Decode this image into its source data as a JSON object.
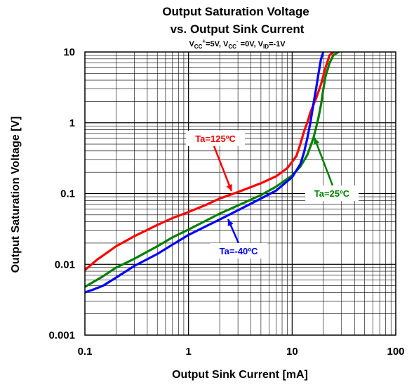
{
  "chart_data": {
    "type": "line",
    "title": "Output Saturation Voltage",
    "subtitle": "vs. Output Sink Current",
    "conditions": {
      "vcc_plus": {
        "sym": "V",
        "sub": "CC",
        "sup": "+",
        "rest": "=5V, "
      },
      "vcc_minus": {
        "sym": "V",
        "sub": "CC",
        "sup": "-",
        "rest": " =0V, "
      },
      "vid": {
        "sym": "V",
        "sub": "ID",
        "rest": "=-1V"
      }
    },
    "xlabel": "Output Sink Current [mA]",
    "ylabel": "Output Saturation Voltage [V]",
    "xscale": "log",
    "yscale": "log",
    "xlim": [
      0.1,
      100
    ],
    "ylim": [
      0.001,
      10
    ],
    "grid": true,
    "x_ticks": [
      "0.1",
      "1",
      "10",
      "100"
    ],
    "y_ticks": [
      "0.001",
      "0.01",
      "0.1",
      "1",
      "10"
    ],
    "series": [
      {
        "name": "Ta=125ºC",
        "color": "#ff0000",
        "points": [
          [
            0.1,
            0.0083
          ],
          [
            0.13,
            0.0115
          ],
          [
            0.2,
            0.018
          ],
          [
            0.3,
            0.025
          ],
          [
            0.5,
            0.036
          ],
          [
            0.7,
            0.045
          ],
          [
            1,
            0.055
          ],
          [
            1.5,
            0.07
          ],
          [
            2,
            0.085
          ],
          [
            3,
            0.105
          ],
          [
            5,
            0.14
          ],
          [
            7,
            0.175
          ],
          [
            9,
            0.23
          ],
          [
            10,
            0.28
          ],
          [
            11,
            0.34
          ],
          [
            12,
            0.5
          ],
          [
            13,
            0.75
          ],
          [
            14,
            1.0
          ],
          [
            15,
            1.4
          ],
          [
            17,
            2.2
          ],
          [
            19,
            3.5
          ],
          [
            21,
            6
          ],
          [
            23,
            9
          ],
          [
            25,
            10
          ]
        ]
      },
      {
        "name": "Ta=25ºC",
        "color": "#008000",
        "points": [
          [
            0.1,
            0.0048
          ],
          [
            0.15,
            0.0068
          ],
          [
            0.2,
            0.009
          ],
          [
            0.3,
            0.012
          ],
          [
            0.5,
            0.018
          ],
          [
            0.7,
            0.024
          ],
          [
            1,
            0.031
          ],
          [
            1.5,
            0.042
          ],
          [
            2,
            0.052
          ],
          [
            3,
            0.068
          ],
          [
            5,
            0.095
          ],
          [
            7,
            0.125
          ],
          [
            10,
            0.18
          ],
          [
            12,
            0.24
          ],
          [
            14,
            0.35
          ],
          [
            16,
            0.6
          ],
          [
            17,
            0.85
          ],
          [
            18,
            1.2
          ],
          [
            19,
            1.8
          ],
          [
            20,
            3.0
          ],
          [
            21,
            4.5
          ],
          [
            23,
            7
          ],
          [
            25,
            9
          ],
          [
            28,
            10
          ]
        ]
      },
      {
        "name": "Ta=-40ºC",
        "color": "#0000ff",
        "points": [
          [
            0.1,
            0.004
          ],
          [
            0.12,
            0.0044
          ],
          [
            0.15,
            0.005
          ],
          [
            0.2,
            0.0065
          ],
          [
            0.3,
            0.0095
          ],
          [
            0.5,
            0.014
          ],
          [
            0.7,
            0.019
          ],
          [
            1,
            0.026
          ],
          [
            1.5,
            0.035
          ],
          [
            2,
            0.043
          ],
          [
            3,
            0.058
          ],
          [
            5,
            0.085
          ],
          [
            7,
            0.11
          ],
          [
            10,
            0.17
          ],
          [
            12,
            0.26
          ],
          [
            13,
            0.38
          ],
          [
            14,
            0.6
          ],
          [
            15,
            1.0
          ],
          [
            16,
            1.8
          ],
          [
            17,
            3.0
          ],
          [
            18,
            5
          ],
          [
            19,
            8
          ],
          [
            20,
            10
          ]
        ]
      }
    ],
    "annotations": [
      {
        "series": "Ta=125ºC",
        "text": "Ta=125ºC",
        "color": "#ff0000"
      },
      {
        "series": "Ta=25ºC",
        "text": "Ta=25ºC",
        "color": "#008000"
      },
      {
        "series": "Ta=-40ºC",
        "text": "Ta=-40ºC",
        "color": "#0000ff"
      }
    ]
  }
}
